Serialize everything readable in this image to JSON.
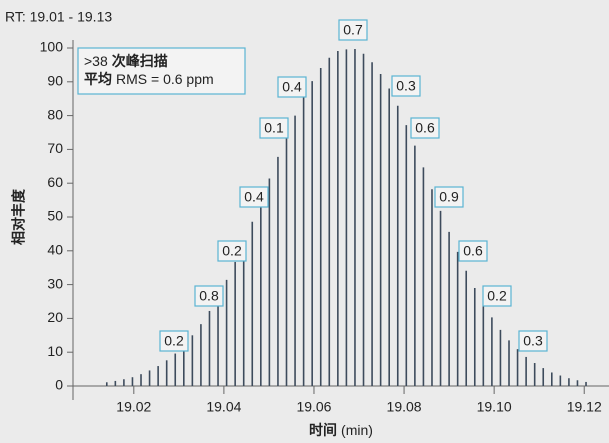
{
  "chart_data": {
    "type": "bar",
    "subtitle": "RT: 19.01 - 19.13",
    "x_label_bold": "时间",
    "x_label": "(min)",
    "y_label": "相对丰度",
    "info_box": {
      "scan_count": ">38",
      "scan_label": "次峰扫描",
      "avg_label": "平均",
      "rms": "RMS = 0.6 ppm"
    },
    "x": [
      19.014,
      19.0159,
      19.0178,
      19.0197,
      19.0216,
      19.0235,
      19.0254,
      19.0273,
      19.0292,
      19.0311,
      19.033,
      19.0349,
      19.0368,
      19.0387,
      19.0406,
      19.0425,
      19.0444,
      19.0463,
      19.0482,
      19.0501,
      19.052,
      19.0539,
      19.0558,
      19.0577,
      19.0596,
      19.0615,
      19.0634,
      19.0653,
      19.0672,
      19.0691,
      19.071,
      19.0729,
      19.0748,
      19.0767,
      19.0786,
      19.0805,
      19.0824,
      19.0843,
      19.0862,
      19.0881,
      19.09,
      19.0919,
      19.0938,
      19.0957,
      19.0976,
      19.0995,
      19.1014,
      19.1033,
      19.1052,
      19.1071,
      19.109,
      19.1109,
      19.1128,
      19.1147,
      19.1166,
      19.1185,
      19.1204
    ],
    "values": [
      1.1,
      1.5,
      2.0,
      2.6,
      3.5,
      4.6,
      5.9,
      7.6,
      9.6,
      12.1,
      15.0,
      18.3,
      22.2,
      26.5,
      31.4,
      36.7,
      42.5,
      48.6,
      54.9,
      61.4,
      67.8,
      74.1,
      80.0,
      85.4,
      90.2,
      94.1,
      97.1,
      99.1,
      99.6,
      99.7,
      98.3,
      95.8,
      92.3,
      88.0,
      82.9,
      77.2,
      71.1,
      64.7,
      58.2,
      51.8,
      45.6,
      39.7,
      34.1,
      29.0,
      24.4,
      20.3,
      16.6,
      13.5,
      10.9,
      8.6,
      6.8,
      5.3,
      4.0,
      3.1,
      2.3,
      1.7,
      1.2
    ],
    "color": "#3d4b5c",
    "annotations": [
      "0.2",
      "0.8",
      "0.2",
      "0.4",
      "0.1",
      "0.4",
      "0.7",
      "0.3",
      "0.6",
      "0.9",
      "0.6",
      "0.2",
      "0.3"
    ],
    "xlim": [
      19.0065,
      19.1255
    ],
    "xticks": [
      19.02,
      19.04,
      19.06,
      19.08,
      {
        "value": 19.1,
        "label": "19.10"
      },
      19.12
    ],
    "ylim": [
      0,
      100
    ],
    "yticks": [
      0,
      10,
      20,
      30,
      40,
      50,
      60,
      70,
      80,
      90,
      100
    ]
  }
}
